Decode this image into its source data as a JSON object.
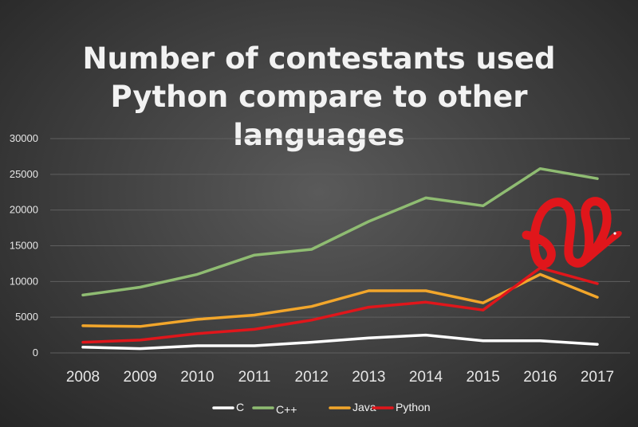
{
  "chart_data": {
    "type": "line",
    "title_lines": [
      "Number of contestants used",
      "Python compare to other",
      "languages"
    ],
    "x": [
      "2008",
      "2009",
      "2010",
      "2011",
      "2012",
      "2013",
      "2014",
      "2015",
      "2016",
      "2017"
    ],
    "ylim": [
      0,
      30000
    ],
    "yticks": [
      "0",
      "5000",
      "10000",
      "15000",
      "20000",
      "25000",
      "30000"
    ],
    "grid": true,
    "legend_position": "bottom",
    "series": [
      {
        "name": "C",
        "color": "#ffffff",
        "values": [
          800,
          600,
          1000,
          1000,
          1500,
          2100,
          2500,
          1700,
          1700,
          1200
        ]
      },
      {
        "name": "C++",
        "color": "#8fbc72",
        "values": [
          8100,
          9200,
          11000,
          13700,
          14500,
          18400,
          21700,
          20600,
          25800,
          24400
        ]
      },
      {
        "name": "Java",
        "color": "#f2a62b",
        "values": [
          3800,
          3700,
          4700,
          5300,
          6500,
          8700,
          8700,
          7000,
          11000,
          7800
        ]
      },
      {
        "name": "Python",
        "color": "#e0161b",
        "values": [
          1500,
          1800,
          2700,
          3300,
          4600,
          6400,
          7100,
          6000,
          11900,
          9700
        ]
      }
    ]
  },
  "logo": {
    "name": "python-snake-logo",
    "color": "#e0161b"
  }
}
